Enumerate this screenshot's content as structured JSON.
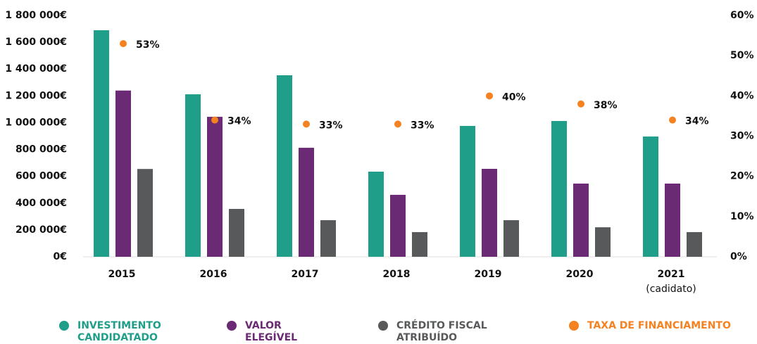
{
  "chart_data": {
    "type": "bar",
    "categories": [
      "2015",
      "2016",
      "2017",
      "2018",
      "2019",
      "2020",
      "2021"
    ],
    "x_note": "(cadidato)",
    "series": [
      {
        "name": "INVESTIMENTO CANDIDATADO",
        "color": "#1f9e89",
        "values": [
          1690000,
          1212000,
          1354000,
          635000,
          976000,
          1013000,
          897000
        ]
      },
      {
        "name": "VALOR ELEGÍVEL",
        "color": "#6b2a74",
        "values": [
          1240000,
          1044000,
          813000,
          462000,
          656000,
          546000,
          546000
        ]
      },
      {
        "name": "CRÉDITO FISCAL ATRIBUÍDO",
        "color": "#58595b",
        "values": [
          655000,
          357000,
          273000,
          184000,
          273000,
          220000,
          184000
        ]
      },
      {
        "name": "TAXA DE FINANCIAMENTO",
        "color": "#f58220",
        "axis": "y2",
        "values": [
          53,
          34,
          33,
          33,
          40,
          38,
          34
        ],
        "value_labels": [
          "53%",
          "34%",
          "33%",
          "33%",
          "40%",
          "38%",
          "34%"
        ]
      }
    ],
    "ylim": [
      0,
      1800000
    ],
    "yticks": [
      {
        "value": 0,
        "label": "0€"
      },
      {
        "value": 200000,
        "label": "200 000€"
      },
      {
        "value": 400000,
        "label": "400 000€"
      },
      {
        "value": 600000,
        "label": "600 000€"
      },
      {
        "value": 800000,
        "label": "800 000€"
      },
      {
        "value": 1000000,
        "label": "1 000 000€"
      },
      {
        "value": 1200000,
        "label": "1 200 000€"
      },
      {
        "value": 1400000,
        "label": "1 400 000€"
      },
      {
        "value": 1600000,
        "label": "1 600 000€"
      },
      {
        "value": 1800000,
        "label": "1 800 000€"
      }
    ],
    "y2lim": [
      0,
      60
    ],
    "y2ticks": [
      {
        "value": 0,
        "label": "0%"
      },
      {
        "value": 10,
        "label": "10%"
      },
      {
        "value": 20,
        "label": "20%"
      },
      {
        "value": 30,
        "label": "30%"
      },
      {
        "value": 40,
        "label": "40%"
      },
      {
        "value": 50,
        "label": "50%"
      },
      {
        "value": 60,
        "label": "60%"
      }
    ]
  }
}
